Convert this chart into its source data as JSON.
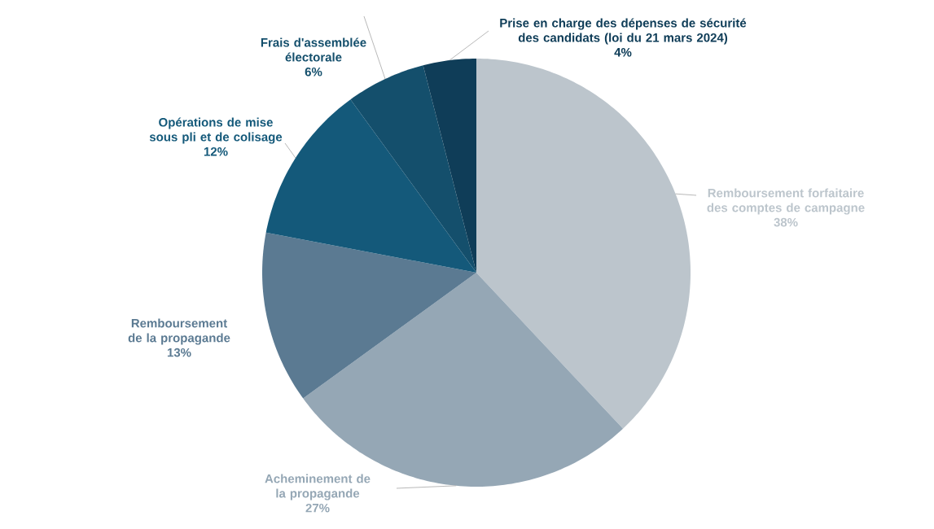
{
  "chart_data": {
    "type": "pie",
    "categories": [
      "Remboursement forfaitaire des comptes de campagne",
      "Acheminement de la propagande",
      "Remboursement de la propagande",
      "Opérations de mise sous pli et de colisage",
      "Frais d'assemblée électorale",
      "Prise en charge des dépenses de sécurité des candidats (loi du 21 mars 2024)"
    ],
    "values": [
      38,
      27,
      13,
      12,
      6,
      4
    ],
    "value_labels": [
      "38%",
      "27%",
      "13%",
      "12%",
      "6%",
      "4%"
    ],
    "colors": [
      "#bcc5cc",
      "#95a7b5",
      "#5b7a92",
      "#14597a",
      "#144f6c",
      "#0f3d58"
    ]
  }
}
